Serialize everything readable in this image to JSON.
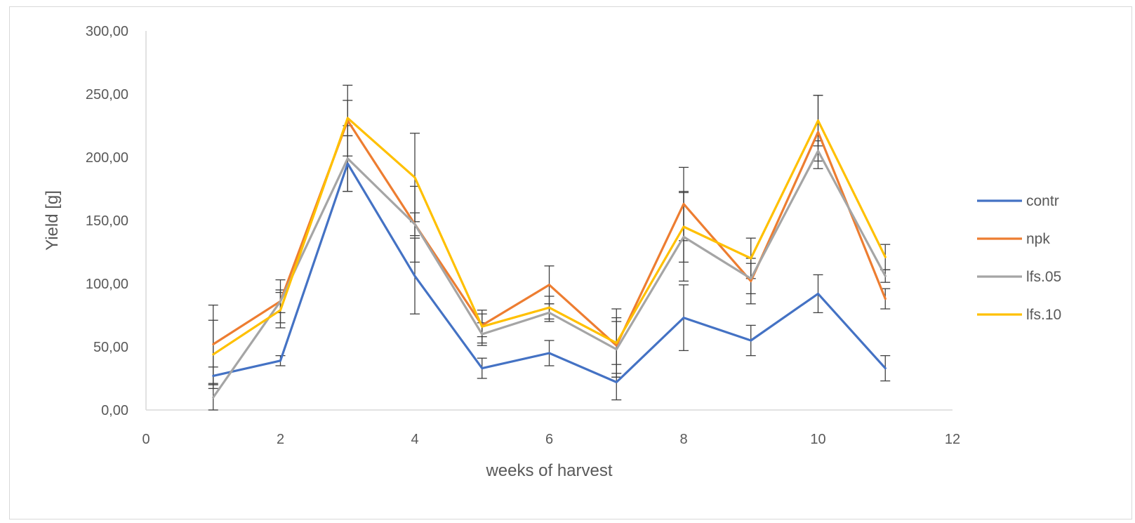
{
  "chart_data": {
    "type": "line",
    "title": "",
    "xlabel": "weeks of harvest",
    "ylabel": "Yield [g]",
    "xlim": [
      0,
      12
    ],
    "ylim": [
      0,
      300
    ],
    "x_ticks": [
      0,
      2,
      4,
      6,
      8,
      10,
      12
    ],
    "y_ticks": [
      "0,00",
      "50,00",
      "100,00",
      "150,00",
      "200,00",
      "250,00",
      "300,00"
    ],
    "grid": false,
    "legend_position": "right",
    "x": [
      1,
      2,
      3,
      4,
      5,
      6,
      7,
      8,
      9,
      10,
      11
    ],
    "series": [
      {
        "name": "contr",
        "color": "#4472C4",
        "values": [
          27,
          39,
          195,
          106,
          33,
          45,
          22,
          73,
          55,
          92,
          33
        ],
        "errors": [
          7,
          4,
          22,
          30,
          8,
          10,
          14,
          26,
          12,
          15,
          10
        ]
      },
      {
        "name": "npk",
        "color": "#ED7D31",
        "values": [
          52,
          86,
          229,
          147,
          67,
          99,
          51,
          163,
          102,
          220,
          88
        ],
        "errors": [
          31,
          17,
          28,
          9,
          9,
          15,
          22,
          29,
          18,
          29,
          8
        ]
      },
      {
        "name": "lfs.05",
        "color": "#A5A5A5",
        "values": [
          10,
          86,
          199,
          147,
          60,
          77,
          48,
          137,
          104,
          205,
          106
        ],
        "errors": [
          10,
          9,
          26,
          30,
          9,
          7,
          22,
          35,
          12,
          8,
          5
        ]
      },
      {
        "name": "lfs.10",
        "color": "#FFC000",
        "values": [
          44,
          79,
          231,
          184,
          66,
          81,
          53,
          145,
          120,
          229,
          121
        ],
        "errors": [
          27,
          14,
          14,
          35,
          13,
          9,
          27,
          28,
          16,
          20,
          10
        ]
      }
    ]
  }
}
